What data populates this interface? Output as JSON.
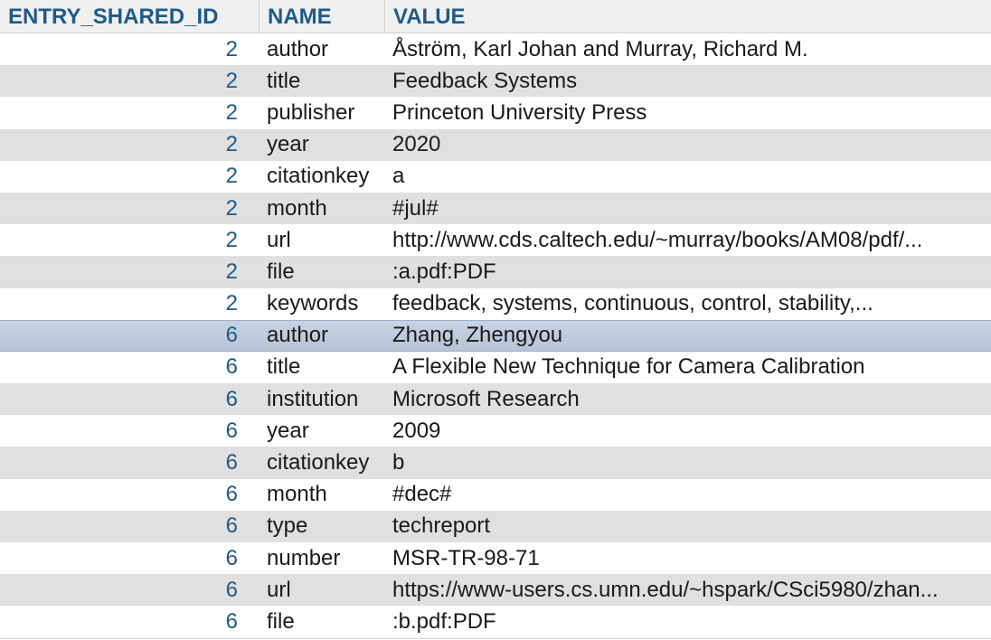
{
  "table": {
    "columns": [
      "ENTRY_SHARED_ID",
      "NAME",
      "VALUE"
    ],
    "selected_row_index": 9,
    "rows": [
      {
        "id": "2",
        "name": "author",
        "value": "Åström, Karl Johan and Murray, Richard M."
      },
      {
        "id": "2",
        "name": "title",
        "value": "Feedback Systems"
      },
      {
        "id": "2",
        "name": "publisher",
        "value": "Princeton University Press"
      },
      {
        "id": "2",
        "name": "year",
        "value": "2020"
      },
      {
        "id": "2",
        "name": "citationkey",
        "value": "a"
      },
      {
        "id": "2",
        "name": "month",
        "value": "#jul#"
      },
      {
        "id": "2",
        "name": "url",
        "value": "http://www.cds.caltech.edu/~murray/books/AM08/pdf/..."
      },
      {
        "id": "2",
        "name": "file",
        "value": ":a.pdf:PDF"
      },
      {
        "id": "2",
        "name": "keywords",
        "value": "feedback, systems, continuous, control, stability,..."
      },
      {
        "id": "6",
        "name": "author",
        "value": "Zhang, Zhengyou"
      },
      {
        "id": "6",
        "name": "title",
        "value": "A Flexible New Technique for Camera Calibration"
      },
      {
        "id": "6",
        "name": "institution",
        "value": "Microsoft Research"
      },
      {
        "id": "6",
        "name": "year",
        "value": "2009"
      },
      {
        "id": "6",
        "name": "citationkey",
        "value": "b"
      },
      {
        "id": "6",
        "name": "month",
        "value": "#dec#"
      },
      {
        "id": "6",
        "name": "type",
        "value": "techreport"
      },
      {
        "id": "6",
        "name": "number",
        "value": "MSR-TR-98-71"
      },
      {
        "id": "6",
        "name": "url",
        "value": "https://www-users.cs.umn.edu/~hspark/CSci5980/zhan..."
      },
      {
        "id": "6",
        "name": "file",
        "value": ":b.pdf:PDF"
      }
    ]
  },
  "colors": {
    "header_text": "#1f5a8a",
    "id_text": "#1f5a8a",
    "stripe": "#e0e0e0",
    "selected": "#bfcbdc"
  }
}
